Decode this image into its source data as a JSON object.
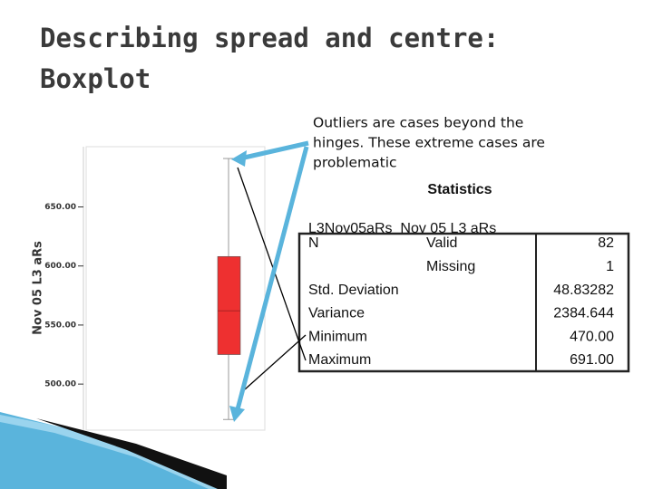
{
  "slide": {
    "title_lines": [
      "Describing spread and centre:",
      "Boxplot"
    ],
    "callout_lines": [
      "Outliers are cases beyond the",
      "hinges. These extreme cases are",
      "problematic"
    ]
  },
  "chart_data": {
    "type": "box",
    "ylabel": "Nov 05 L3 aRs",
    "color": "#ee3030",
    "box": {
      "min": 470,
      "q1": 525,
      "median": 562,
      "q3": 608,
      "max": 691
    },
    "ylim": [
      461,
      701
    ],
    "yticks": [
      {
        "value": 500,
        "label": "500.00"
      },
      {
        "value": 550,
        "label": "550.00"
      },
      {
        "value": 600,
        "label": "600.00"
      },
      {
        "value": 650,
        "label": "650.00"
      }
    ]
  },
  "table": {
    "title": "Statistics",
    "header": "L3Nov05aRs_Nov 05 L3 aRs",
    "rows": [
      [
        "N",
        "Valid",
        "82"
      ],
      [
        "",
        "Missing",
        "1"
      ],
      [
        "Std. Deviation",
        "",
        "48.83282"
      ],
      [
        "Variance",
        "",
        "2384.644"
      ],
      [
        "Minimum",
        "",
        "470.00"
      ],
      [
        "Maximum",
        "",
        "691.00"
      ]
    ]
  }
}
